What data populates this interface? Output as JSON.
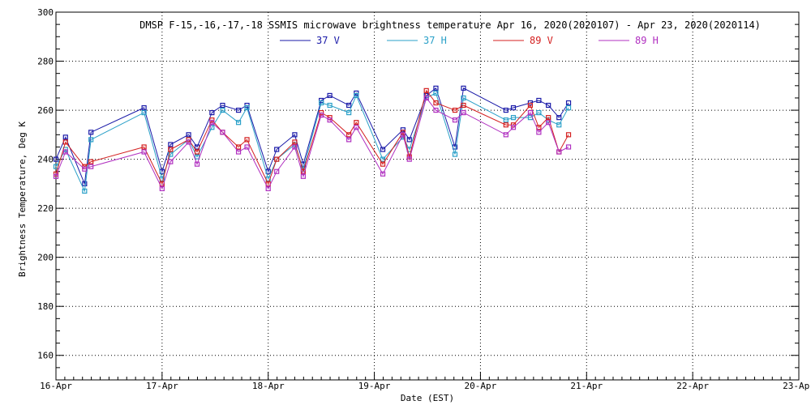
{
  "chart_data": {
    "type": "line",
    "title": "DMSP F-15,-16,-17,-18 SSMIS microwave brightness temperature Apr 16, 2020(2020107) - Apr 23, 2020(2020114)",
    "xlabel": "Date (EST)",
    "ylabel": "Brightness Temperature, Deg K",
    "x_unit": "days since 16-Apr 00:00",
    "xlim": [
      0,
      7
    ],
    "ylim": [
      150,
      300
    ],
    "yticks": [
      160,
      180,
      200,
      220,
      240,
      260,
      280,
      300
    ],
    "xticks": [
      {
        "x": 0,
        "label": "16-Apr"
      },
      {
        "x": 1,
        "label": "17-Apr"
      },
      {
        "x": 2,
        "label": "18-Apr"
      },
      {
        "x": 3,
        "label": "19-Apr"
      },
      {
        "x": 4,
        "label": "20-Apr"
      },
      {
        "x": 5,
        "label": "21-Apr"
      },
      {
        "x": 6,
        "label": "22-Apr"
      },
      {
        "x": 7,
        "label": "23-Apr"
      }
    ],
    "grid": true,
    "legend_position": "top-center",
    "x": [
      0.0,
      0.09,
      0.27,
      0.33,
      0.83,
      1.0,
      1.08,
      1.25,
      1.33,
      1.47,
      1.57,
      1.72,
      1.8,
      2.0,
      2.08,
      2.25,
      2.33,
      2.5,
      2.58,
      2.76,
      2.83,
      3.08,
      3.27,
      3.33,
      3.49,
      3.58,
      3.76,
      3.84,
      4.24,
      4.31,
      4.47,
      4.55,
      4.64,
      4.74,
      4.83,
      4.89
    ],
    "series": [
      {
        "name": "37 V",
        "color": "#1a1aa8",
        "values": [
          240,
          249,
          230,
          251,
          261,
          235,
          246,
          250,
          245,
          259,
          262,
          260,
          262,
          235,
          244,
          250,
          238,
          264,
          266,
          262,
          267,
          244,
          252,
          248,
          266,
          269,
          245,
          269,
          260,
          261,
          263,
          264,
          262,
          257,
          263,
          null
        ]
      },
      {
        "name": "37 H",
        "color": "#2aa0c8",
        "values": [
          237,
          244,
          227,
          248,
          259,
          232,
          242,
          248,
          241,
          253,
          260,
          255,
          261,
          232,
          240,
          246,
          236,
          263,
          262,
          259,
          266,
          240,
          249,
          244,
          265,
          267,
          242,
          265,
          256,
          257,
          257,
          259,
          256,
          254,
          261,
          null
        ]
      },
      {
        "name": "89 V",
        "color": "#d42020",
        "values": [
          234,
          247,
          237,
          239,
          245,
          230,
          244,
          248,
          243,
          256,
          251,
          245,
          248,
          230,
          240,
          247,
          235,
          259,
          257,
          250,
          255,
          238,
          251,
          241,
          268,
          263,
          260,
          262,
          254,
          254,
          262,
          253,
          257,
          243,
          250,
          null
        ]
      },
      {
        "name": "89 H",
        "color": "#b030c0",
        "values": [
          233,
          243,
          236,
          237,
          243,
          228,
          239,
          247,
          238,
          255,
          251,
          243,
          245,
          228,
          235,
          245,
          233,
          258,
          256,
          248,
          253,
          234,
          250,
          240,
          265,
          260,
          256,
          259,
          250,
          253,
          259,
          251,
          255,
          243,
          245,
          null
        ]
      }
    ]
  }
}
